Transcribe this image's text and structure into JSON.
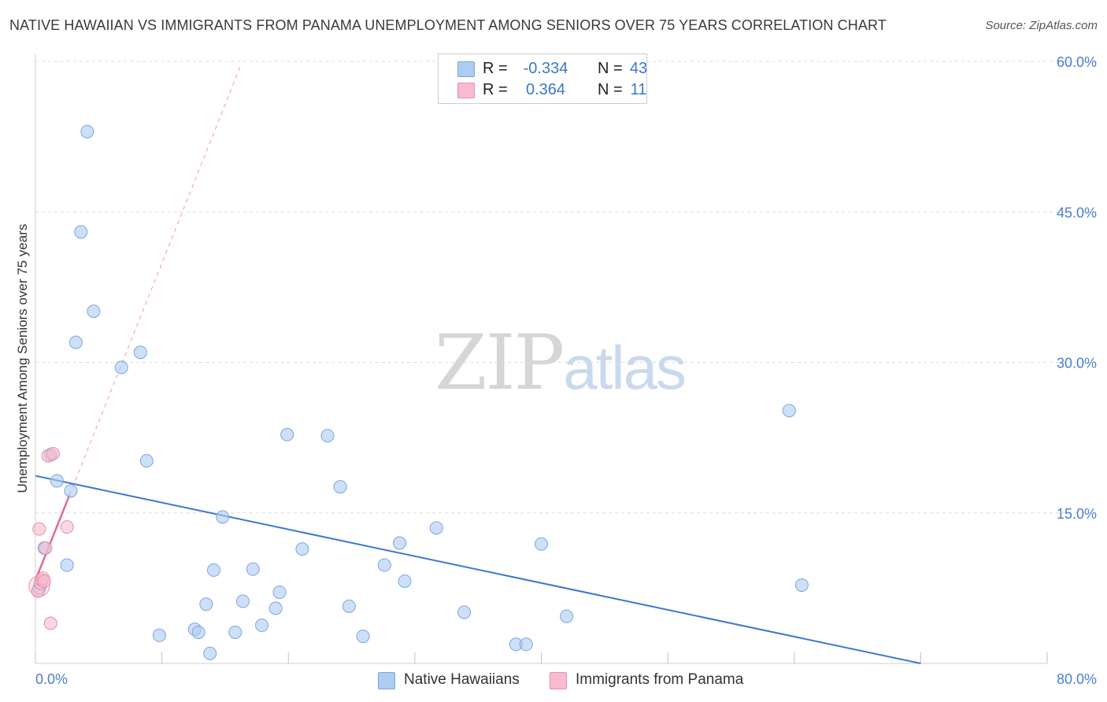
{
  "title": "NATIVE HAWAIIAN VS IMMIGRANTS FROM PANAMA UNEMPLOYMENT AMONG SENIORS OVER 75 YEARS CORRELATION CHART",
  "source": "Source: ZipAtlas.com",
  "watermark": {
    "zip": "ZIP",
    "atlas": "atlas"
  },
  "legend": {
    "r_label": "R =",
    "n_label": "N =",
    "rows": [
      {
        "r": "-0.334",
        "n": "43",
        "color": "#aecbf1"
      },
      {
        "r": "0.364",
        "n": "11",
        "color": "#f6bccd"
      }
    ]
  },
  "bottom_legend": [
    {
      "label": "Native Hawaiians",
      "color": "#aecbf1"
    },
    {
      "label": "Immigrants from Panama",
      "color": "#f6bccd"
    }
  ],
  "chart_data": {
    "type": "scatter",
    "xlabel": "",
    "ylabel": "Unemployment Among Seniors over 75 years",
    "xlim": [
      0,
      80
    ],
    "ylim": [
      0,
      60
    ],
    "x_tick_labels": [
      "0.0%",
      "80.0%"
    ],
    "y_tick_labels": [
      "15.0%",
      "30.0%",
      "45.0%",
      "60.0%"
    ],
    "y_ticks": [
      15,
      30,
      45,
      60
    ],
    "grid": true,
    "series": [
      {
        "name": "Native Hawaiians",
        "color": "#aecbf1",
        "stroke": "#7aa6df",
        "r": -0.334,
        "n": 43,
        "points": [
          [
            0.3,
            7.5
          ],
          [
            0.7,
            11.5
          ],
          [
            1.2,
            20.8
          ],
          [
            1.7,
            18.2
          ],
          [
            2.5,
            9.8
          ],
          [
            2.8,
            17.2
          ],
          [
            3.2,
            32.0
          ],
          [
            3.6,
            43.0
          ],
          [
            4.1,
            53.0
          ],
          [
            4.6,
            35.1
          ],
          [
            6.8,
            29.5
          ],
          [
            8.3,
            31.0
          ],
          [
            8.8,
            20.2
          ],
          [
            9.8,
            2.8
          ],
          [
            12.6,
            3.4
          ],
          [
            12.9,
            3.1
          ],
          [
            13.5,
            5.9
          ],
          [
            13.8,
            1.0
          ],
          [
            14.1,
            9.3
          ],
          [
            14.8,
            14.6
          ],
          [
            15.8,
            3.1
          ],
          [
            16.4,
            6.2
          ],
          [
            17.2,
            9.4
          ],
          [
            17.9,
            3.8
          ],
          [
            19.0,
            5.5
          ],
          [
            19.3,
            7.1
          ],
          [
            19.9,
            22.8
          ],
          [
            21.1,
            11.4
          ],
          [
            23.1,
            22.7
          ],
          [
            24.1,
            17.6
          ],
          [
            24.8,
            5.7
          ],
          [
            25.9,
            2.7
          ],
          [
            27.6,
            9.8
          ],
          [
            28.8,
            12.0
          ],
          [
            29.2,
            8.2
          ],
          [
            31.7,
            13.5
          ],
          [
            33.9,
            5.1
          ],
          [
            38.0,
            1.9
          ],
          [
            38.8,
            1.9
          ],
          [
            40.0,
            11.9
          ],
          [
            42.0,
            4.7
          ],
          [
            59.6,
            25.2
          ],
          [
            60.6,
            7.8
          ]
        ],
        "trend": {
          "x": [
            0,
            70.0
          ],
          "y": [
            18.7,
            0.0
          ]
        }
      },
      {
        "name": "Immigrants from Panama",
        "color": "#f6bccd",
        "stroke": "#e58fab",
        "r": 0.364,
        "n": 11,
        "points": [
          [
            0.2,
            7.2
          ],
          [
            0.3,
            13.4
          ],
          [
            0.4,
            8.0
          ],
          [
            0.5,
            8.3
          ],
          [
            0.6,
            8.5
          ],
          [
            0.7,
            8.2
          ],
          [
            0.8,
            11.5
          ],
          [
            1.0,
            20.7
          ],
          [
            1.2,
            4.0
          ],
          [
            1.4,
            20.9
          ],
          [
            2.5,
            13.6
          ]
        ],
        "trend": {
          "x": [
            0,
            2.7
          ],
          "y": [
            8.3,
            16.8
          ]
        },
        "trend_extended": {
          "x": [
            2.7,
            16.2
          ],
          "y": [
            16.8,
            59.5
          ]
        }
      }
    ]
  }
}
